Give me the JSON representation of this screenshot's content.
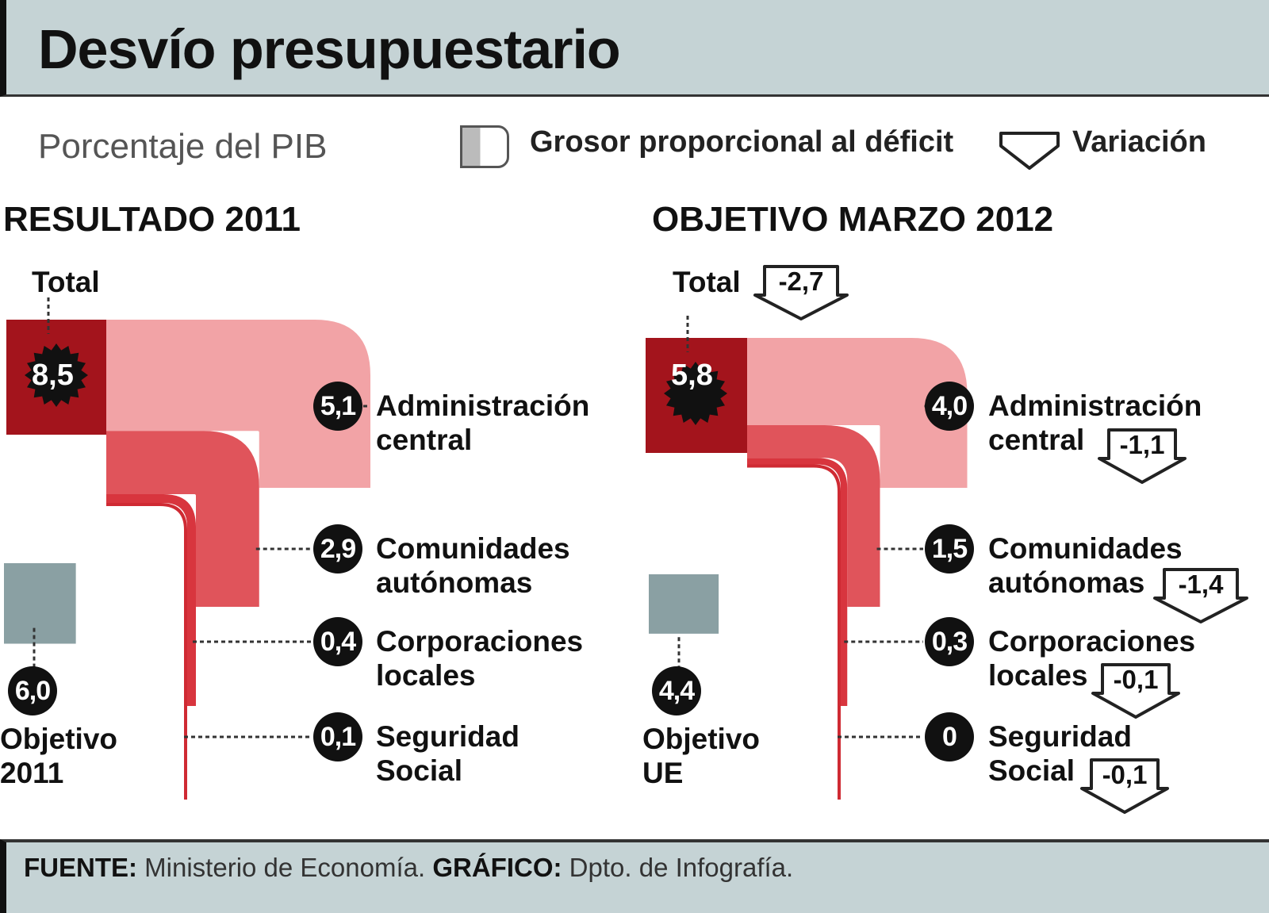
{
  "title": "Desvío presupuestario",
  "legend": {
    "unit": "Porcentaje del PIB",
    "thickness": "Grosor proporcional al déficit",
    "variation": "Variación"
  },
  "footer": {
    "source_label": "FUENTE:",
    "source": "Ministerio de Economía.",
    "graphic_label": "GRÁFICO:",
    "graphic": "Dpto. de Infografía."
  },
  "chart_data": [
    {
      "type": "bar",
      "title": "RESULTADO 2011",
      "total_label": "Total",
      "total": "8,5",
      "categories": [
        "Administración central",
        "Comunidades autónomas",
        "Corporaciones locales",
        "Seguridad Social"
      ],
      "values": [
        5.1,
        2.9,
        0.4,
        0.1
      ],
      "value_labels": [
        "5,1",
        "2,9",
        "0,4",
        "0,1"
      ],
      "label_lines": [
        [
          "Administración",
          "central"
        ],
        [
          "Comunidades",
          "autónomas"
        ],
        [
          "Corporaciones",
          "locales"
        ],
        [
          "Seguridad",
          "Social"
        ]
      ],
      "target": {
        "lines": [
          "Objetivo",
          "2011"
        ],
        "value": "6,0"
      }
    },
    {
      "type": "bar",
      "title": "OBJETIVO MARZO 2012",
      "total_label": "Total",
      "total": "5,8",
      "total_variation": "-2,7",
      "categories": [
        "Administración central",
        "Comunidades autónomas",
        "Corporaciones locales",
        "Seguridad Social"
      ],
      "values": [
        4.0,
        1.5,
        0.3,
        0
      ],
      "value_labels": [
        "4,0",
        "1,5",
        "0,3",
        "0"
      ],
      "variations": [
        "-1,1",
        "-1,4",
        "-0,1",
        "-0,1"
      ],
      "label_lines": [
        [
          "Administración",
          "central"
        ],
        [
          "Comunidades",
          "autónomas"
        ],
        [
          "Corporaciones",
          "locales"
        ],
        [
          "Seguridad",
          "Social"
        ]
      ],
      "target": {
        "lines": [
          "Objetivo",
          "UE"
        ],
        "value": "4,4"
      }
    }
  ],
  "colors": {
    "dark_red": "#a3141c",
    "red_1": "#f2a3a6",
    "red_2": "#e0545b",
    "red_3": "#d8353e",
    "red_4": "#cf2a33",
    "target_gray": "#8aa0a3"
  }
}
